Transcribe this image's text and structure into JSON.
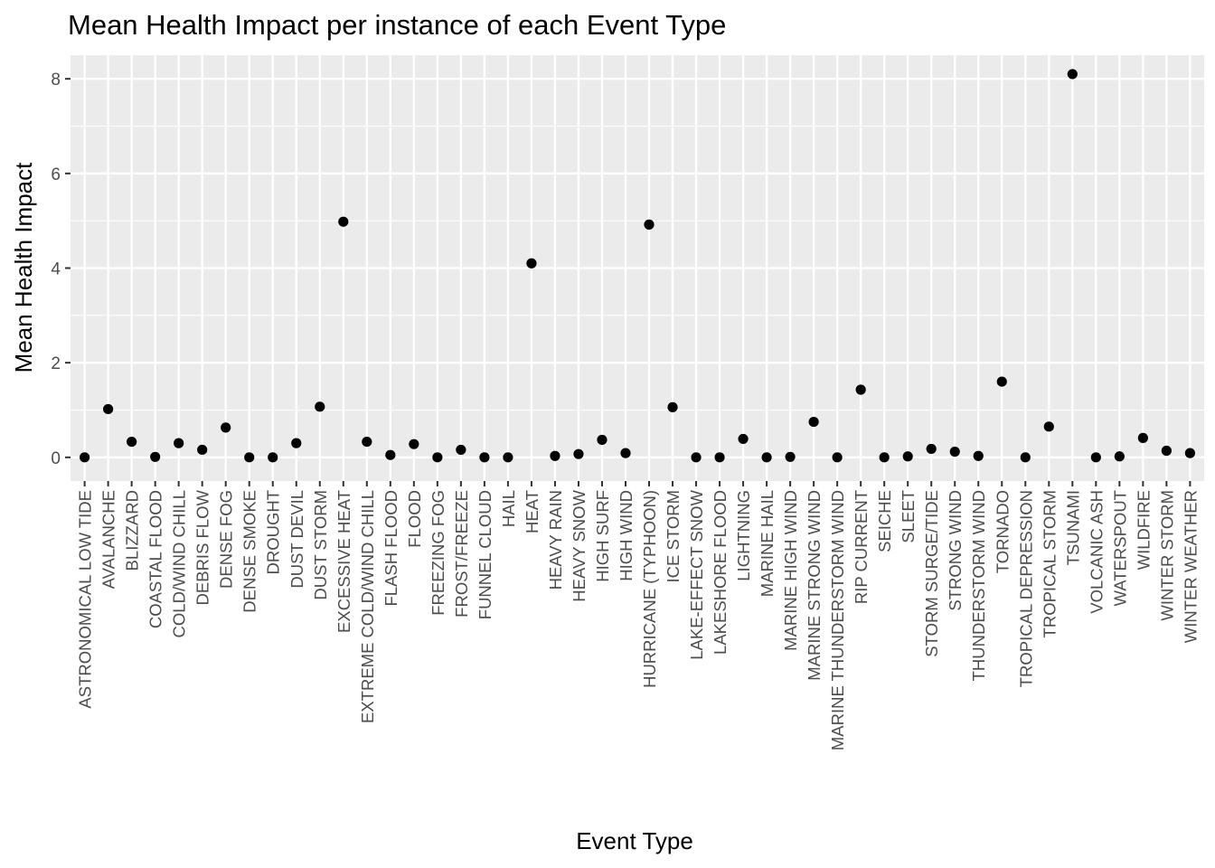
{
  "chart_data": {
    "type": "scatter",
    "title": "Mean Health Impact per instance of each Event Type",
    "xlabel": "Event Type",
    "ylabel": "Mean Health Impact",
    "ylim": [
      -0.5,
      8.5
    ],
    "yticks": [
      0,
      2,
      4,
      6,
      8
    ],
    "grid": true,
    "colors": {
      "panel": "#ebebeb",
      "grid": "#ffffff",
      "point": "#000000",
      "tick": "#333333"
    },
    "categories": [
      "ASTRONOMICAL LOW TIDE",
      "AVALANCHE",
      "BLIZZARD",
      "COASTAL FLOOD",
      "COLD/WIND CHILL",
      "DEBRIS FLOW",
      "DENSE FOG",
      "DENSE SMOKE",
      "DROUGHT",
      "DUST DEVIL",
      "DUST STORM",
      "EXCESSIVE HEAT",
      "EXTREME COLD/WIND CHILL",
      "FLASH FLOOD",
      "FLOOD",
      "FREEZING FOG",
      "FROST/FREEZE",
      "FUNNEL CLOUD",
      "HAIL",
      "HEAT",
      "HEAVY RAIN",
      "HEAVY SNOW",
      "HIGH SURF",
      "HIGH WIND",
      "HURRICANE (TYPHOON)",
      "ICE STORM",
      "LAKE-EFFECT SNOW",
      "LAKESHORE FLOOD",
      "LIGHTNING",
      "MARINE HAIL",
      "MARINE HIGH WIND",
      "MARINE STRONG WIND",
      "MARINE THUNDERSTORM WIND",
      "RIP CURRENT",
      "SEICHE",
      "SLEET",
      "STORM SURGE/TIDE",
      "STRONG WIND",
      "THUNDERSTORM WIND",
      "TORNADO",
      "TROPICAL DEPRESSION",
      "TROPICAL STORM",
      "TSUNAMI",
      "VOLCANIC ASH",
      "WATERSPOUT",
      "WILDFIRE",
      "WINTER STORM",
      "WINTER WEATHER"
    ],
    "values": [
      0.0,
      1.02,
      0.33,
      0.01,
      0.3,
      0.16,
      0.63,
      0.0,
      0.0,
      0.3,
      1.07,
      4.98,
      0.33,
      0.05,
      0.28,
      0.0,
      0.16,
      0.0,
      0.0,
      4.1,
      0.03,
      0.07,
      0.37,
      0.09,
      4.92,
      1.06,
      0.0,
      0.0,
      0.39,
      0.0,
      0.01,
      0.75,
      0.0,
      1.43,
      0.0,
      0.02,
      0.18,
      0.12,
      0.03,
      1.6,
      0.0,
      0.65,
      8.1,
      0.0,
      0.02,
      0.41,
      0.14,
      0.09
    ]
  }
}
